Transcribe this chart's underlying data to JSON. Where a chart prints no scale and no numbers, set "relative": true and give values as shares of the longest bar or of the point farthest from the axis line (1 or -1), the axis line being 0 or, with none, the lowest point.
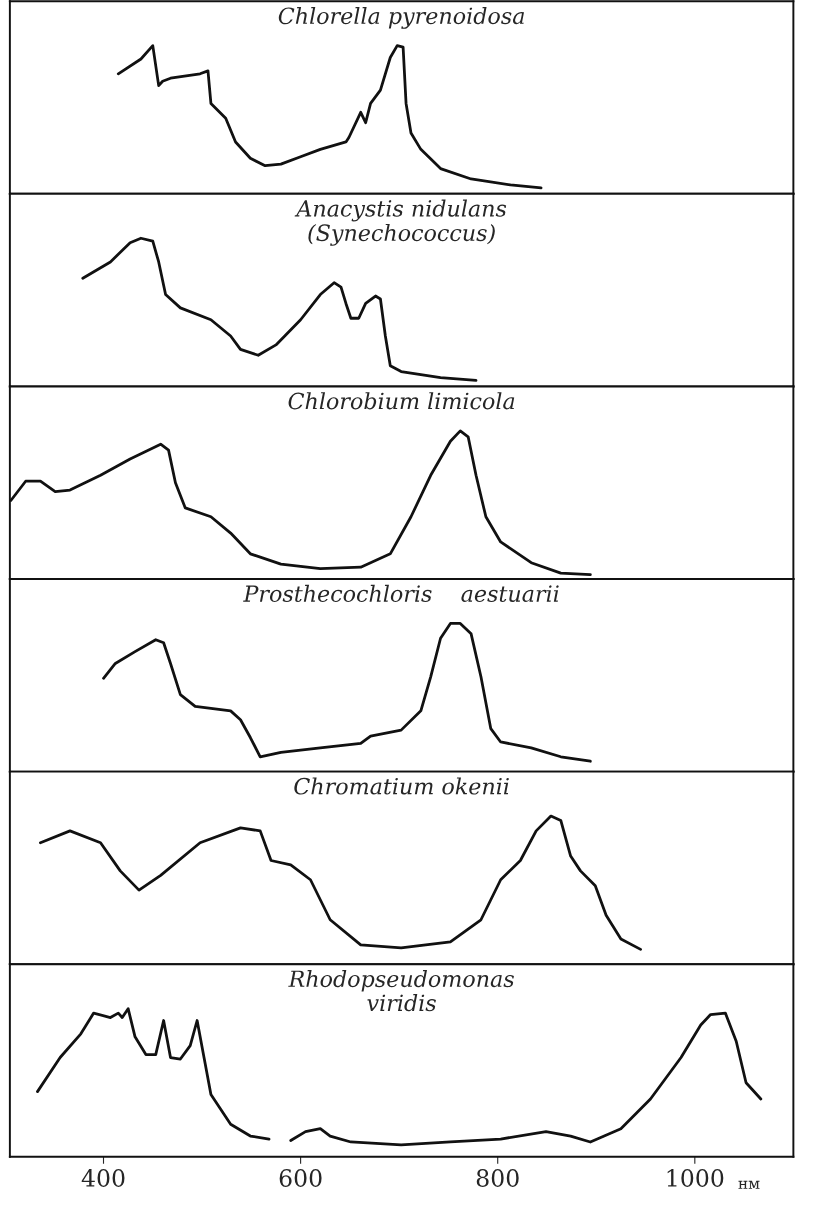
{
  "chart_data": [
    {
      "type": "line",
      "title": "Chlorella pyrenoidosa",
      "relative": true,
      "xlim": [
        305,
        1100
      ],
      "tick_labels": false,
      "series": [
        {
          "color": "#111111",
          "x": [
            415,
            438,
            450,
            456,
            460,
            468,
            498,
            506,
            509,
            524,
            534,
            549,
            564,
            580,
            600,
            620,
            646,
            649,
            661,
            666,
            671,
            681,
            691,
            698,
            704,
            707,
            712,
            722,
            742,
            773,
            813,
            844
          ],
          "values": [
            0.81,
            0.91,
            1.0,
            0.73,
            0.76,
            0.78,
            0.81,
            0.83,
            0.61,
            0.51,
            0.35,
            0.24,
            0.19,
            0.2,
            0.25,
            0.3,
            0.35,
            0.38,
            0.55,
            0.48,
            0.61,
            0.7,
            0.92,
            1.0,
            0.99,
            0.61,
            0.41,
            0.3,
            0.17,
            0.1,
            0.06,
            0.04
          ]
        }
      ]
    },
    {
      "type": "line",
      "title": "Anacystis nidulans\n(Synechococcus)",
      "relative": true,
      "xlim": [
        305,
        1100
      ],
      "tick_labels": false,
      "series": [
        {
          "color": "#111111",
          "x": [
            379,
            407,
            427,
            438,
            450,
            456,
            463,
            478,
            509,
            529,
            539,
            557,
            575,
            600,
            620,
            634,
            641,
            646,
            651,
            659,
            666,
            676,
            681,
            686,
            691,
            702,
            742,
            778
          ],
          "values": [
            0.73,
            0.84,
            0.97,
            1.0,
            0.98,
            0.84,
            0.62,
            0.53,
            0.45,
            0.34,
            0.25,
            0.21,
            0.28,
            0.45,
            0.62,
            0.7,
            0.67,
            0.56,
            0.46,
            0.46,
            0.56,
            0.61,
            0.59,
            0.34,
            0.14,
            0.1,
            0.06,
            0.04
          ]
        }
      ]
    },
    {
      "type": "line",
      "title": "Chlorobium limicola",
      "relative": true,
      "xlim": [
        305,
        1100
      ],
      "tick_labels": false,
      "series": [
        {
          "color": "#111111",
          "x": [
            306,
            321,
            336,
            351,
            366,
            397,
            427,
            458,
            466,
            473,
            483,
            509,
            529,
            549,
            580,
            620,
            661,
            691,
            712,
            732,
            752,
            762,
            770,
            778,
            788,
            803,
            834,
            864,
            894
          ],
          "values": [
            0.53,
            0.66,
            0.66,
            0.59,
            0.6,
            0.7,
            0.81,
            0.91,
            0.87,
            0.65,
            0.48,
            0.42,
            0.31,
            0.17,
            0.1,
            0.07,
            0.08,
            0.17,
            0.42,
            0.7,
            0.93,
            1.0,
            0.96,
            0.7,
            0.42,
            0.25,
            0.11,
            0.04,
            0.03
          ]
        }
      ]
    },
    {
      "type": "line",
      "title": "Prosthecochloris    aestuarii",
      "relative": true,
      "xlim": [
        305,
        1100
      ],
      "tick_labels": false,
      "series": [
        {
          "color": "#111111",
          "x": [
            400,
            412,
            432,
            453,
            461,
            468,
            478,
            493,
            529,
            539,
            549,
            559,
            580,
            620,
            661,
            671,
            702,
            722,
            732,
            742,
            752,
            762,
            773,
            783,
            793,
            803,
            834,
            864,
            894
          ],
          "values": [
            0.63,
            0.73,
            0.81,
            0.89,
            0.87,
            0.73,
            0.52,
            0.44,
            0.41,
            0.35,
            0.23,
            0.1,
            0.13,
            0.16,
            0.19,
            0.24,
            0.28,
            0.41,
            0.64,
            0.9,
            1.0,
            1.0,
            0.93,
            0.64,
            0.29,
            0.2,
            0.16,
            0.1,
            0.07
          ]
        }
      ]
    },
    {
      "type": "line",
      "title": "Chromatium okenii",
      "relative": true,
      "xlim": [
        305,
        1100
      ],
      "tick_labels": false,
      "series": [
        {
          "color": "#111111",
          "x": [
            336,
            366,
            397,
            417,
            436,
            458,
            498,
            539,
            559,
            570,
            590,
            610,
            630,
            661,
            702,
            752,
            783,
            803,
            823,
            839,
            854,
            864,
            874,
            884,
            899,
            910,
            925,
            945
          ],
          "values": [
            0.82,
            0.9,
            0.82,
            0.63,
            0.5,
            0.6,
            0.82,
            0.92,
            0.9,
            0.7,
            0.67,
            0.57,
            0.3,
            0.13,
            0.11,
            0.15,
            0.3,
            0.57,
            0.7,
            0.9,
            1.0,
            0.97,
            0.73,
            0.63,
            0.53,
            0.33,
            0.17,
            0.1
          ]
        }
      ]
    },
    {
      "type": "line",
      "title": "Rhodopseudomonas\nviridis",
      "relative": true,
      "xlim": [
        305,
        1100
      ],
      "xticks": [
        400,
        600,
        800,
        1000
      ],
      "xlabel": "нм",
      "tick_labels": "x",
      "series": [
        {
          "color": "#111111",
          "x": [
            333,
            356,
            377,
            390,
            407,
            415,
            419,
            425,
            432,
            443,
            453,
            461,
            468,
            478,
            488,
            495,
            502,
            509,
            529,
            549,
            568,
            578,
            590,
            605,
            620,
            630,
            651,
            702,
            752,
            803,
            849,
            874,
            894,
            925,
            955,
            986,
            1006,
            1016,
            1031,
            1042,
            1052,
            1067
          ],
          "values": [
            0.44,
            0.67,
            0.83,
            0.97,
            0.94,
            0.97,
            0.94,
            1.0,
            0.81,
            0.69,
            0.69,
            0.92,
            0.67,
            0.66,
            0.75,
            0.92,
            0.67,
            0.42,
            0.22,
            0.14,
            0.12,
            null,
            0.11,
            0.17,
            0.19,
            0.14,
            0.1,
            0.08,
            0.1,
            0.12,
            0.17,
            0.14,
            0.1,
            0.19,
            0.39,
            0.67,
            0.89,
            0.96,
            0.97,
            0.78,
            0.5,
            0.39
          ]
        }
      ]
    }
  ]
}
